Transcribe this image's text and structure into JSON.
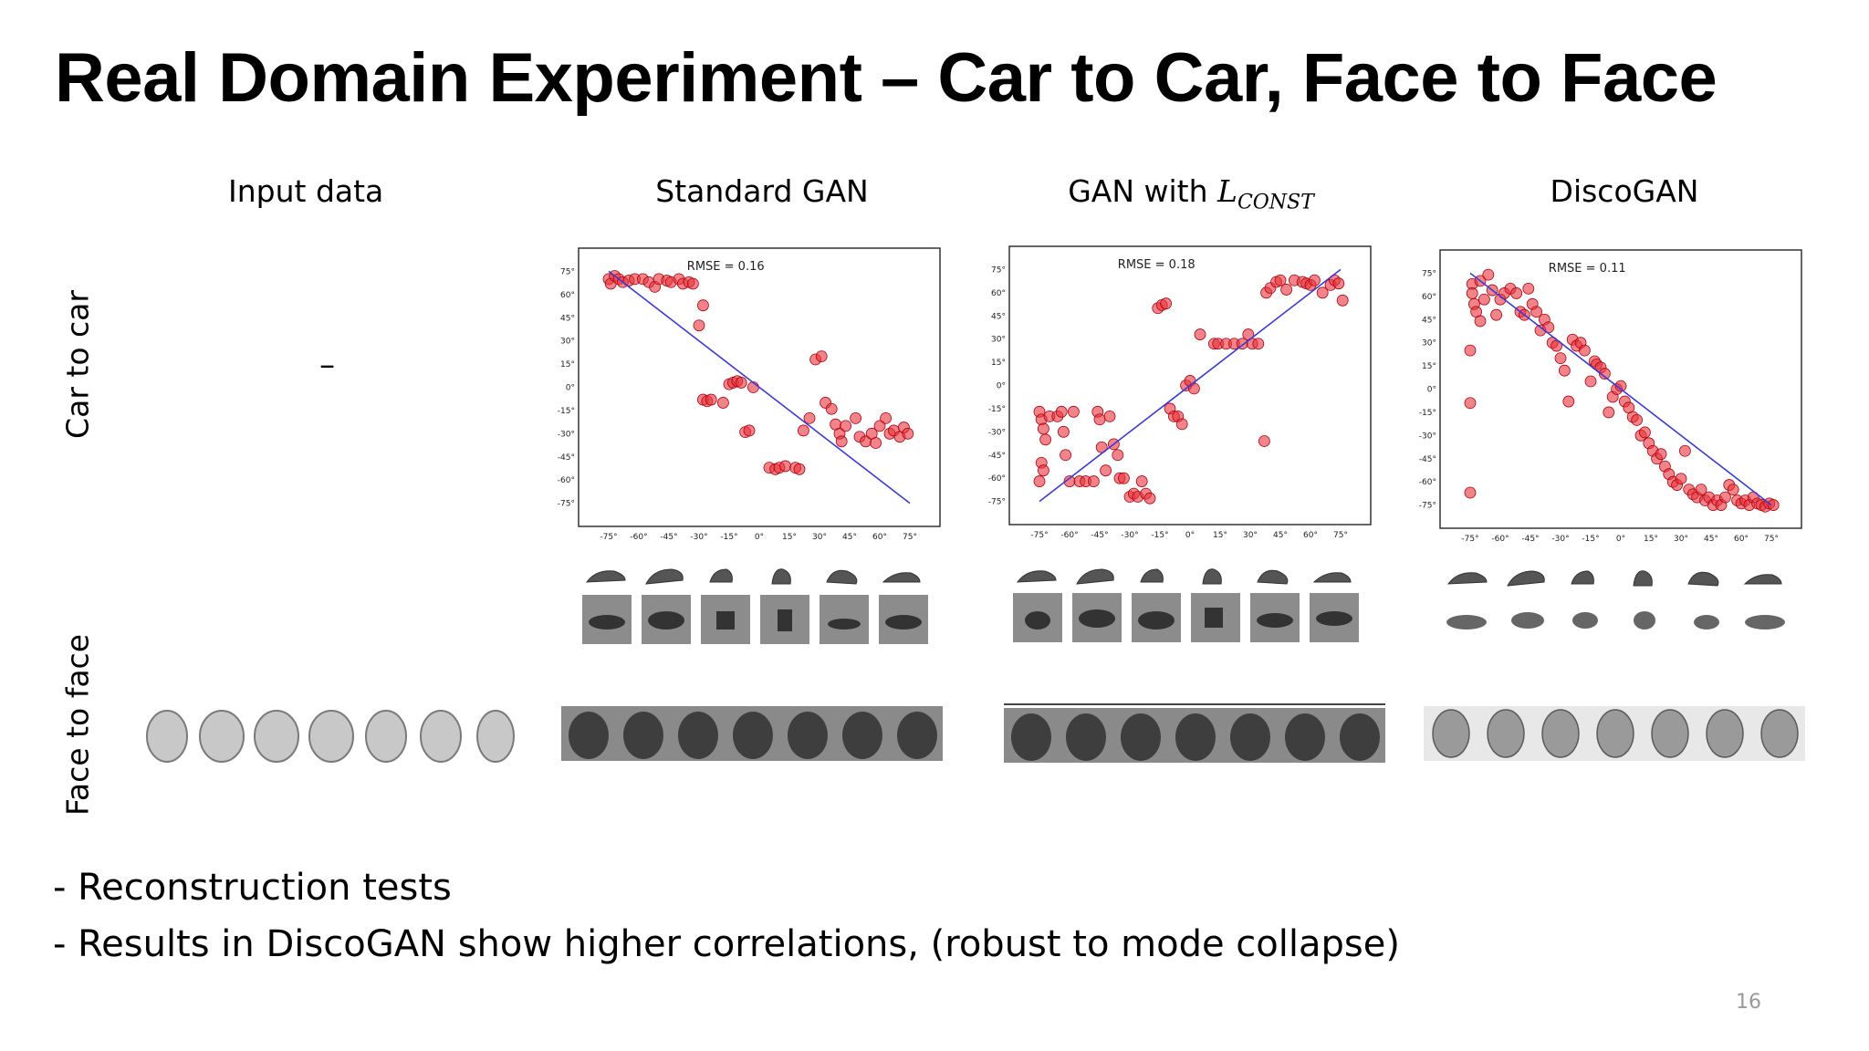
{
  "slide": {
    "title": "Real Domain Experiment – Car to Car, Face to Face",
    "page_number": "16"
  },
  "columns": {
    "input": "Input data",
    "standard": "Standard GAN",
    "const_prefix": "GAN with ",
    "const_symbol": "L",
    "const_subscript": "CONST",
    "disco": "DiscoGAN"
  },
  "rows": {
    "car": "Car to car",
    "face": "Face to face"
  },
  "input_car_placeholder": "–",
  "bullets": [
    "- Reconstruction tests",
    "- Results in DiscoGAN show higher correlations, (robust to mode collapse)"
  ],
  "chart_data": [
    {
      "type": "scatter",
      "annotation": "RMSE =  0.16",
      "xlim": [
        -90,
        90
      ],
      "ylim": [
        -90,
        90
      ],
      "x_ticks": [
        "-75°",
        "-60°",
        "-45°",
        "-30°",
        "-15°",
        "0°",
        "15°",
        "30°",
        "45°",
        "60°",
        "75°"
      ],
      "y_ticks": [
        "75°",
        "60°",
        "45°",
        "30°",
        "15°",
        "0°",
        "-15°",
        "-30°",
        "-45°",
        "-60°",
        "-75°"
      ],
      "line": [
        [
          -75,
          75
        ],
        [
          75,
          -75
        ]
      ],
      "points": [
        [
          -75,
          70
        ],
        [
          -74,
          67
        ],
        [
          -72,
          72
        ],
        [
          -70,
          70
        ],
        [
          -68,
          68
        ],
        [
          -65,
          69
        ],
        [
          -62,
          70
        ],
        [
          -58,
          70
        ],
        [
          -55,
          68
        ],
        [
          -52,
          65
        ],
        [
          -50,
          70
        ],
        [
          -46,
          69
        ],
        [
          -44,
          68
        ],
        [
          -40,
          70
        ],
        [
          -38,
          67
        ],
        [
          -35,
          68
        ],
        [
          -33,
          67
        ],
        [
          -30,
          40
        ],
        [
          -28,
          53
        ],
        [
          -28,
          -8
        ],
        [
          -26,
          -9
        ],
        [
          -24,
          -8
        ],
        [
          -18,
          -10
        ],
        [
          -15,
          2
        ],
        [
          -13,
          3
        ],
        [
          -11,
          4
        ],
        [
          -9,
          3
        ],
        [
          -7,
          -29
        ],
        [
          -5,
          -28
        ],
        [
          -3,
          0
        ],
        [
          5,
          -52
        ],
        [
          8,
          -53
        ],
        [
          10,
          -52
        ],
        [
          13,
          -51
        ],
        [
          18,
          -52
        ],
        [
          20,
          -53
        ],
        [
          22,
          -28
        ],
        [
          25,
          -20
        ],
        [
          28,
          18
        ],
        [
          31,
          20
        ],
        [
          33,
          -10
        ],
        [
          36,
          -14
        ],
        [
          38,
          -24
        ],
        [
          40,
          -30
        ],
        [
          41,
          -35
        ],
        [
          43,
          -25
        ],
        [
          48,
          -20
        ],
        [
          50,
          -32
        ],
        [
          53,
          -35
        ],
        [
          56,
          -30
        ],
        [
          58,
          -36
        ],
        [
          60,
          -25
        ],
        [
          63,
          -20
        ],
        [
          65,
          -30
        ],
        [
          67,
          -28
        ],
        [
          70,
          -32
        ],
        [
          72,
          -26
        ],
        [
          74,
          -30
        ]
      ]
    },
    {
      "type": "scatter",
      "annotation": "RMSE =  0.18",
      "xlim": [
        -90,
        90
      ],
      "ylim": [
        -90,
        90
      ],
      "x_ticks": [
        "-75°",
        "-60°",
        "-45°",
        "-30°",
        "-15°",
        "0°",
        "15°",
        "30°",
        "45°",
        "60°",
        "75°"
      ],
      "y_ticks": [
        "75°",
        "60°",
        "45°",
        "30°",
        "15°",
        "0°",
        "-15°",
        "-30°",
        "-45°",
        "-60°",
        "-75°"
      ],
      "line": [
        [
          -75,
          -75
        ],
        [
          75,
          75
        ]
      ],
      "points": [
        [
          -75,
          -17
        ],
        [
          -74,
          -22
        ],
        [
          -73,
          -28
        ],
        [
          -72,
          -35
        ],
        [
          -74,
          -50
        ],
        [
          -73,
          -55
        ],
        [
          -75,
          -62
        ],
        [
          -70,
          -20
        ],
        [
          -66,
          -20
        ],
        [
          -64,
          -17
        ],
        [
          -63,
          -30
        ],
        [
          -62,
          -45
        ],
        [
          -60,
          -62
        ],
        [
          -58,
          -17
        ],
        [
          -55,
          -62
        ],
        [
          -52,
          -62
        ],
        [
          -48,
          -62
        ],
        [
          -46,
          -17
        ],
        [
          -45,
          -22
        ],
        [
          -44,
          -40
        ],
        [
          -42,
          -55
        ],
        [
          -40,
          -20
        ],
        [
          -38,
          -38
        ],
        [
          -36,
          -45
        ],
        [
          -35,
          -60
        ],
        [
          -33,
          -60
        ],
        [
          -30,
          -72
        ],
        [
          -28,
          -70
        ],
        [
          -26,
          -72
        ],
        [
          -24,
          -62
        ],
        [
          -22,
          -70
        ],
        [
          -20,
          -73
        ],
        [
          -16,
          50
        ],
        [
          -14,
          52
        ],
        [
          -12,
          53
        ],
        [
          -10,
          -15
        ],
        [
          -8,
          -20
        ],
        [
          -6,
          -20
        ],
        [
          -4,
          -25
        ],
        [
          -2,
          0
        ],
        [
          0,
          3
        ],
        [
          2,
          -2
        ],
        [
          5,
          33
        ],
        [
          12,
          27
        ],
        [
          14,
          27
        ],
        [
          18,
          27
        ],
        [
          22,
          27
        ],
        [
          26,
          27
        ],
        [
          29,
          33
        ],
        [
          31,
          27
        ],
        [
          34,
          27
        ],
        [
          37,
          -36
        ],
        [
          38,
          60
        ],
        [
          40,
          63
        ],
        [
          43,
          67
        ],
        [
          45,
          68
        ],
        [
          48,
          62
        ],
        [
          52,
          68
        ],
        [
          56,
          67
        ],
        [
          58,
          66
        ],
        [
          60,
          65
        ],
        [
          62,
          68
        ],
        [
          66,
          60
        ],
        [
          70,
          65
        ],
        [
          72,
          68
        ],
        [
          74,
          66
        ],
        [
          76,
          55
        ]
      ]
    },
    {
      "type": "scatter",
      "annotation": "RMSE =  0.11",
      "xlim": [
        -90,
        90
      ],
      "ylim": [
        -90,
        90
      ],
      "x_ticks": [
        "-75°",
        "-60°",
        "-45°",
        "-30°",
        "-15°",
        "0°",
        "15°",
        "30°",
        "45°",
        "60°",
        "75°"
      ],
      "y_ticks": [
        "75°",
        "60°",
        "45°",
        "30°",
        "15°",
        "0°",
        "-15°",
        "-30°",
        "-45°",
        "-60°",
        "-75°"
      ],
      "line": [
        [
          -75,
          75
        ],
        [
          75,
          -75
        ]
      ],
      "points": [
        [
          -75,
          25
        ],
        [
          -75,
          -9
        ],
        [
          -75,
          -67
        ],
        [
          -74,
          68
        ],
        [
          -74,
          62
        ],
        [
          -73,
          55
        ],
        [
          -72,
          50
        ],
        [
          -70,
          44
        ],
        [
          -70,
          70
        ],
        [
          -68,
          58
        ],
        [
          -66,
          74
        ],
        [
          -64,
          64
        ],
        [
          -62,
          48
        ],
        [
          -60,
          58
        ],
        [
          -58,
          62
        ],
        [
          -55,
          65
        ],
        [
          -52,
          62
        ],
        [
          -50,
          50
        ],
        [
          -48,
          48
        ],
        [
          -46,
          65
        ],
        [
          -44,
          55
        ],
        [
          -42,
          50
        ],
        [
          -40,
          38
        ],
        [
          -38,
          45
        ],
        [
          -36,
          40
        ],
        [
          -34,
          30
        ],
        [
          -32,
          28
        ],
        [
          -30,
          20
        ],
        [
          -28,
          12
        ],
        [
          -26,
          -8
        ],
        [
          -24,
          32
        ],
        [
          -22,
          28
        ],
        [
          -20,
          30
        ],
        [
          -18,
          25
        ],
        [
          -15,
          5
        ],
        [
          -13,
          18
        ],
        [
          -12,
          16
        ],
        [
          -10,
          14
        ],
        [
          -8,
          10
        ],
        [
          -6,
          -15
        ],
        [
          -4,
          -5
        ],
        [
          -2,
          0
        ],
        [
          0,
          2
        ],
        [
          2,
          -8
        ],
        [
          4,
          -12
        ],
        [
          6,
          -18
        ],
        [
          8,
          -20
        ],
        [
          10,
          -30
        ],
        [
          12,
          -28
        ],
        [
          14,
          -35
        ],
        [
          16,
          -40
        ],
        [
          18,
          -45
        ],
        [
          20,
          -42
        ],
        [
          22,
          -50
        ],
        [
          24,
          -55
        ],
        [
          26,
          -60
        ],
        [
          28,
          -62
        ],
        [
          30,
          -58
        ],
        [
          32,
          -40
        ],
        [
          34,
          -65
        ],
        [
          36,
          -68
        ],
        [
          38,
          -70
        ],
        [
          40,
          -65
        ],
        [
          42,
          -72
        ],
        [
          44,
          -70
        ],
        [
          46,
          -75
        ],
        [
          48,
          -72
        ],
        [
          50,
          -75
        ],
        [
          52,
          -70
        ],
        [
          54,
          -62
        ],
        [
          56,
          -65
        ],
        [
          58,
          -72
        ],
        [
          60,
          -74
        ],
        [
          62,
          -72
        ],
        [
          64,
          -75
        ],
        [
          66,
          -70
        ],
        [
          68,
          -74
        ],
        [
          70,
          -75
        ],
        [
          72,
          -76
        ],
        [
          74,
          -74
        ],
        [
          76,
          -75
        ]
      ]
    }
  ],
  "colors": {
    "point": "#e8323c",
    "point_stroke": "#b0000b",
    "line": "#3a3ad8",
    "car_gray_bg": "#8c8c8c",
    "face_gray_bg": "#8a8a8a"
  }
}
